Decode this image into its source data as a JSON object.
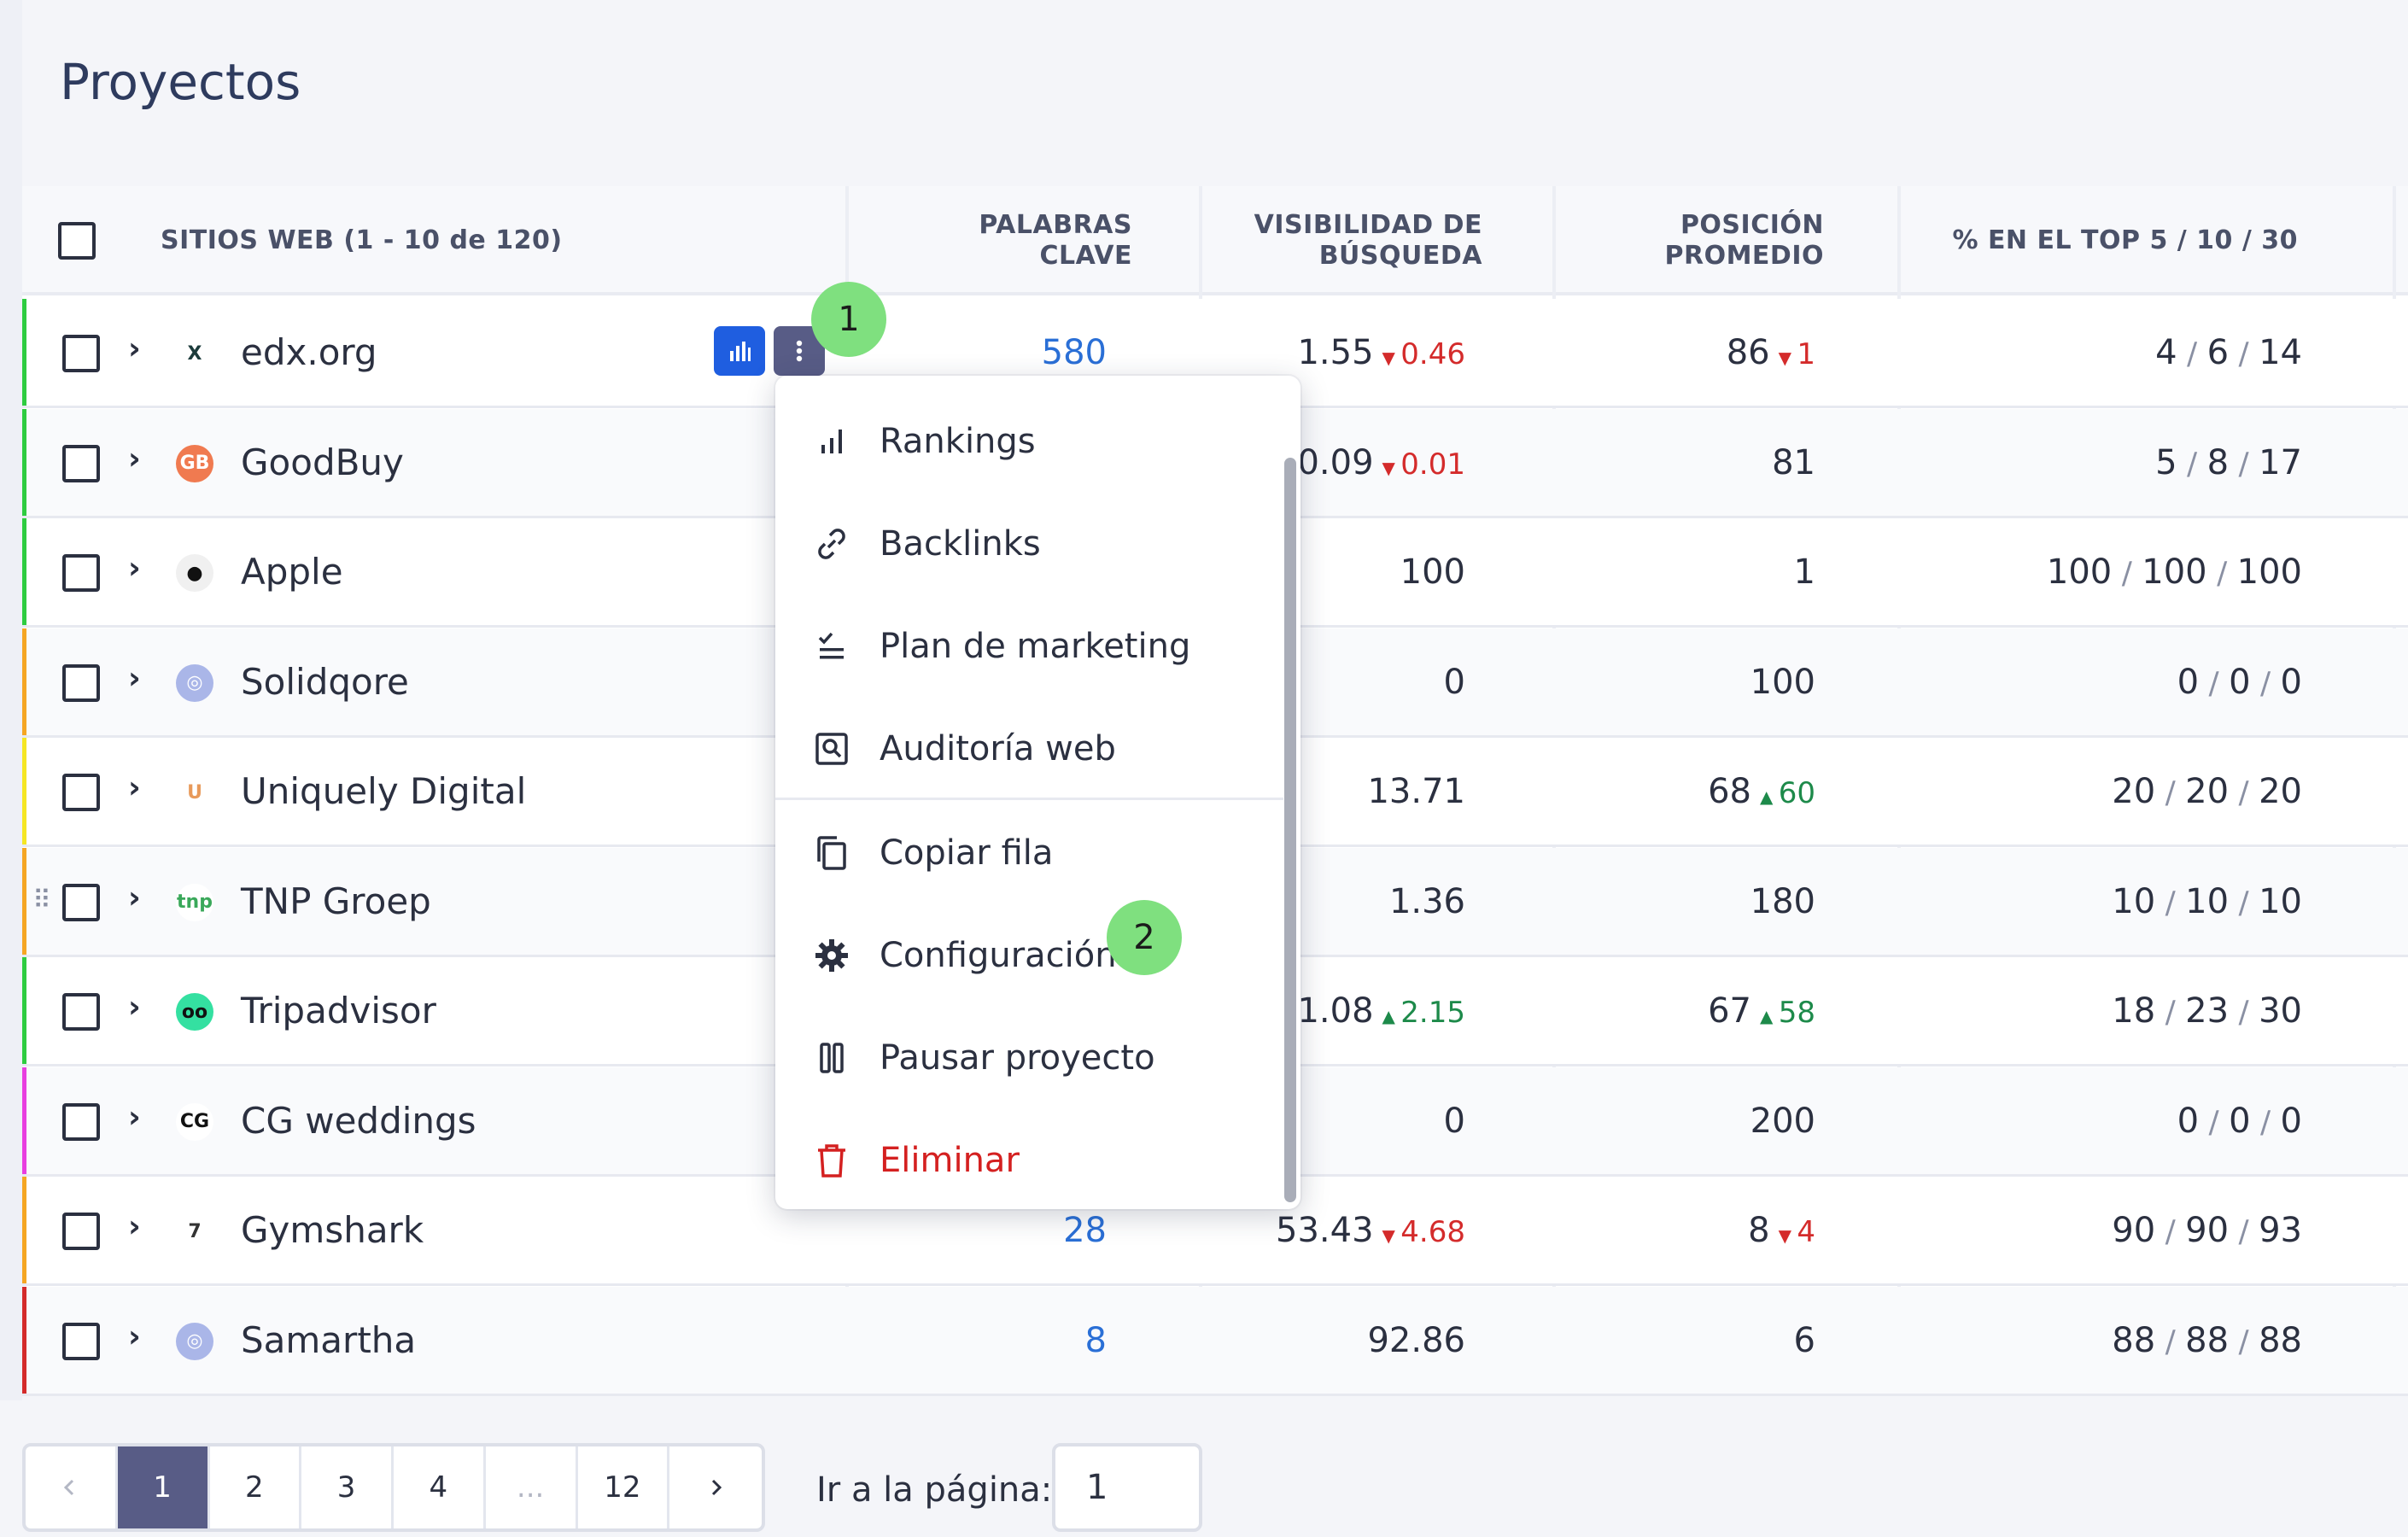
{
  "page": {
    "title": "Proyectos"
  },
  "table": {
    "headers": {
      "sites": "SITIOS WEB (1 - 10 de 120)",
      "keywords_1": "PALABRAS",
      "keywords_2": "CLAVE",
      "visibility_1": "VISIBILIDAD DE",
      "visibility_2": "BÚSQUEDA",
      "position_1": "POSICIÓN",
      "position_2": "PROMEDIO",
      "top": "% EN EL TOP 5 / 10 / 30"
    },
    "rows": [
      {
        "name": "edx.org",
        "stripe": "#2ecc40",
        "icon": "edx-logo-icon",
        "keywords": "580",
        "visibility": "1.55",
        "vis_delta": "0.46",
        "vis_dir": "down",
        "position": "86",
        "pos_delta": "1",
        "pos_dir": "down",
        "top": [
          "4",
          "6",
          "14"
        ]
      },
      {
        "name": "GoodBuy",
        "stripe": "#2ecc40",
        "icon": "goodbuy-logo-icon",
        "keywords": "",
        "visibility": "0.09",
        "vis_delta": "0.01",
        "vis_dir": "down",
        "position": "81",
        "pos_delta": "",
        "pos_dir": "",
        "top": [
          "5",
          "8",
          "17"
        ]
      },
      {
        "name": "Apple",
        "stripe": "#2ecc40",
        "icon": "apple-logo-icon",
        "keywords": "",
        "visibility": "100",
        "vis_delta": "",
        "vis_dir": "",
        "position": "1",
        "pos_delta": "",
        "pos_dir": "",
        "top": [
          "100",
          "100",
          "100"
        ]
      },
      {
        "name": "Solidqore",
        "stripe": "#f5a623",
        "icon": "globe-icon",
        "keywords": "",
        "visibility": "0",
        "vis_delta": "",
        "vis_dir": "",
        "position": "100",
        "pos_delta": "",
        "pos_dir": "",
        "top": [
          "0",
          "0",
          "0"
        ]
      },
      {
        "name": "Uniquely Digital",
        "stripe": "#f5e623",
        "icon": "uniquely-logo-icon",
        "keywords": "",
        "visibility": "13.71",
        "vis_delta": "",
        "vis_dir": "",
        "position": "68",
        "pos_delta": "60",
        "pos_dir": "up",
        "top": [
          "20",
          "20",
          "20"
        ]
      },
      {
        "name": "TNP Groep",
        "stripe": "#f5a623",
        "icon": "tnp-logo-icon",
        "keywords": "",
        "visibility": "1.36",
        "vis_delta": "",
        "vis_dir": "",
        "position": "180",
        "pos_delta": "",
        "pos_dir": "",
        "top": [
          "10",
          "10",
          "10"
        ]
      },
      {
        "name": "Tripadvisor",
        "stripe": "#2ecc40",
        "icon": "tripadvisor-logo-icon",
        "keywords": "",
        "visibility": "1.08",
        "vis_delta": "2.15",
        "vis_dir": "up",
        "position": "67",
        "pos_delta": "58",
        "pos_dir": "up",
        "top": [
          "18",
          "23",
          "30"
        ]
      },
      {
        "name": "CG weddings",
        "stripe": "#e83ee0",
        "icon": "cg-logo-icon",
        "keywords": "",
        "visibility": "0",
        "vis_delta": "",
        "vis_dir": "",
        "position": "200",
        "pos_delta": "",
        "pos_dir": "",
        "top": [
          "0",
          "0",
          "0"
        ]
      },
      {
        "name": "Gymshark",
        "stripe": "#f5a623",
        "icon": "gymshark-logo-icon",
        "keywords": "28",
        "visibility": "53.43",
        "vis_delta": "4.68",
        "vis_dir": "down",
        "position": "8",
        "pos_delta": "4",
        "pos_dir": "down",
        "top": [
          "90",
          "90",
          "93"
        ]
      },
      {
        "name": "Samartha",
        "stripe": "#d42b2b",
        "icon": "globe-icon",
        "keywords": "8",
        "visibility": "92.86",
        "vis_delta": "",
        "vis_dir": "",
        "position": "6",
        "pos_delta": "",
        "pos_dir": "",
        "top": [
          "88",
          "88",
          "88"
        ]
      }
    ]
  },
  "menu": {
    "items": [
      {
        "label": "Rankings",
        "icon": "bar-chart-icon"
      },
      {
        "label": "Backlinks",
        "icon": "link-icon"
      },
      {
        "label": "Plan de marketing",
        "icon": "checklist-icon"
      },
      {
        "label": "Auditoría web",
        "icon": "audit-icon"
      },
      {
        "label": "Copiar fila",
        "icon": "copy-icon"
      },
      {
        "label": "Configuración",
        "icon": "gear-icon"
      },
      {
        "label": "Pausar proyecto",
        "icon": "pause-icon"
      },
      {
        "label": "Eliminar",
        "icon": "trash-icon",
        "danger": true
      }
    ]
  },
  "callouts": {
    "first": "1",
    "second": "2"
  },
  "pagination": {
    "pages": [
      "1",
      "2",
      "3",
      "4",
      "...",
      "12"
    ],
    "current": "1",
    "goto_label": "Ir a la página:",
    "goto_value": "1"
  },
  "colors": {
    "accent": "#2a6fd6",
    "active_page": "#585c86",
    "danger": "#d42020",
    "callout": "#7fe07f"
  }
}
